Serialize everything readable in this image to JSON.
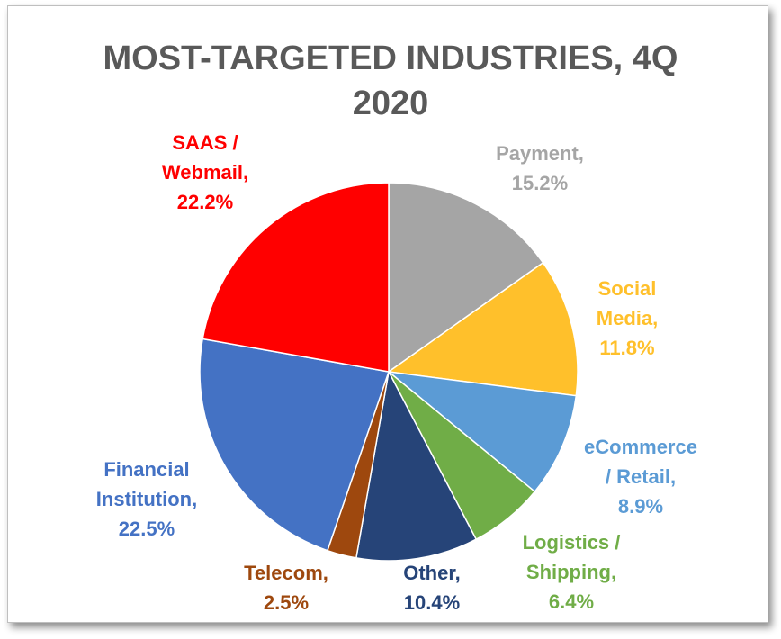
{
  "chart_data": {
    "type": "pie",
    "title": "MOST-TARGETED INDUSTRIES, 4Q 2020",
    "start_angle_deg": 0,
    "direction": "clockwise",
    "slices": [
      {
        "name": "Payment",
        "value": 15.2,
        "color": "#A5A5A5",
        "label_lines": [
          "Payment,",
          "15.2%"
        ]
      },
      {
        "name": "Social Media",
        "value": 11.8,
        "color": "#FFC02B",
        "label_lines": [
          "Social",
          "Media,",
          "11.8%"
        ]
      },
      {
        "name": "eCommerce / Retail",
        "value": 8.9,
        "color": "#5B9BD5",
        "label_lines": [
          "eCommerce",
          "/ Retail,",
          "8.9%"
        ]
      },
      {
        "name": "Logistics / Shipping",
        "value": 6.4,
        "color": "#70AD47",
        "label_lines": [
          "Logistics /",
          "Shipping,",
          "6.4%"
        ]
      },
      {
        "name": "Other",
        "value": 10.4,
        "color": "#264478",
        "label_lines": [
          "Other,",
          "10.4%"
        ]
      },
      {
        "name": "Telecom",
        "value": 2.5,
        "color": "#9E480E",
        "label_lines": [
          "Telecom,",
          "2.5%"
        ]
      },
      {
        "name": "Financial Institution",
        "value": 22.5,
        "color": "#4472C4",
        "label_lines": [
          "Financial",
          "Institution,",
          "22.5%"
        ]
      },
      {
        "name": "SAAS / Webmail",
        "value": 22.2,
        "color": "#FF0000",
        "label_lines": [
          "SAAS /",
          "Webmail,",
          "22.2%"
        ]
      }
    ]
  }
}
